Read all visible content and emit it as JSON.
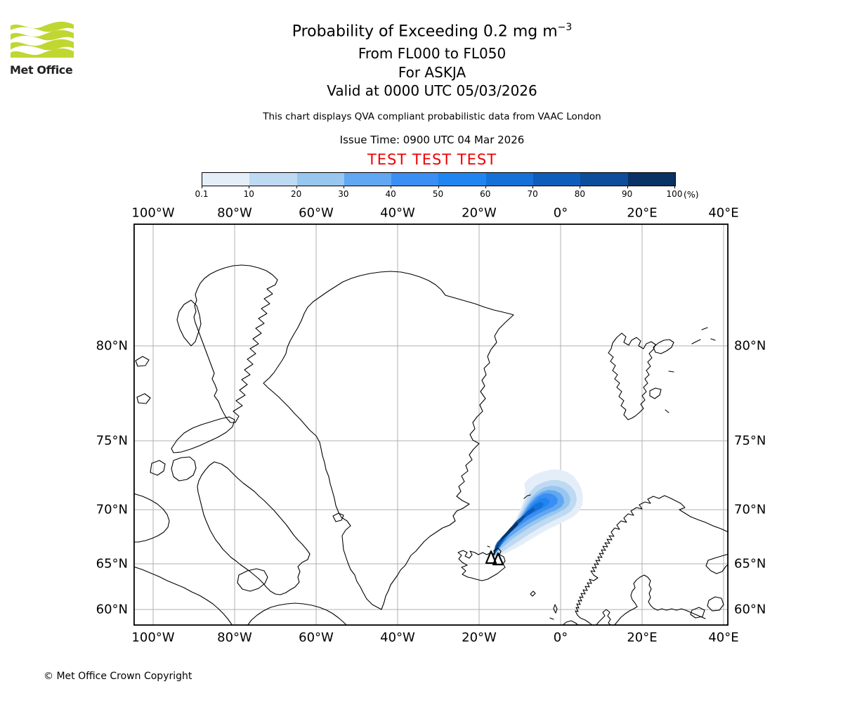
{
  "logo": {
    "text": "Met Office",
    "green": "#bfd730",
    "text_color": "#222222"
  },
  "header": {
    "title_main": "Probability of Exceeding 0.2 mg m",
    "title_sup": "−3",
    "subtitle1": "From FL000 to FL050",
    "subtitle2": "For ASKJA",
    "subtitle3": "Valid at 0000 UTC 05/03/2026",
    "description": "This chart displays QVA compliant probabilistic data from VAAC London",
    "issue_time": "Issue Time: 0900 UTC 04 Mar 2026",
    "test_banner": "TEST TEST TEST",
    "test_color": "#ee0000"
  },
  "colorbar": {
    "tick_labels": [
      "0.1",
      "10",
      "20",
      "30",
      "40",
      "50",
      "60",
      "70",
      "80",
      "90",
      "100"
    ],
    "unit": "(%)",
    "colors": [
      "#e4eef9",
      "#bed9f2",
      "#97c6ef",
      "#61a7f2",
      "#3b8ef3",
      "#2185f1",
      "#1571d7",
      "#0e5dbb",
      "#0d4d9b",
      "#0a3264"
    ]
  },
  "map": {
    "top_axis_labels": [
      "100°W",
      "80°W",
      "60°W",
      "40°W",
      "20°W",
      "0°",
      "20°E",
      "40°E"
    ],
    "bottom_axis_labels": [
      "100°W",
      "80°W",
      "60°W",
      "40°W",
      "20°W",
      "0°",
      "20°E",
      "40°E"
    ],
    "left_axis_labels": [
      "80°N",
      "75°N",
      "70°N",
      "65°N",
      "60°N"
    ],
    "right_axis_labels": [
      "80°N",
      "75°N",
      "70°N",
      "65°N",
      "60°N"
    ]
  },
  "footer": {
    "copyright": "© Met Office Crown Copyright"
  },
  "chart_data": {
    "type": "heatmap",
    "title": "Probability of Exceeding 0.2 mg m-3",
    "flight_levels": "FL000 to FL050",
    "volcano": "ASKJA",
    "valid_time": "0000 UTC 05/03/2026",
    "issue_time": "0900 UTC 04 Mar 2026",
    "source": "VAAC London",
    "quality_note": "QVA compliant probabilistic data",
    "status": "TEST TEST TEST",
    "legend_bins_percent": [
      0.1,
      10,
      20,
      30,
      40,
      50,
      60,
      70,
      80,
      90,
      100
    ],
    "legend_unit": "%",
    "projection": "mercator",
    "map_extent": {
      "lon_min": -104.8,
      "lon_max": 41.2,
      "lat_min": 58.0,
      "lat_max": 84.0
    },
    "lon_gridlines_deg": [
      -100,
      -80,
      -60,
      -40,
      -20,
      0,
      20,
      40
    ],
    "lat_gridlines_deg": [
      80,
      75,
      70,
      65,
      60
    ],
    "plume": {
      "source": {
        "name": "ASKJA",
        "lat": 65.0,
        "lon": -16.8,
        "marker": "two open triangles"
      },
      "direction": "fans out toward the northeast from Iceland",
      "approx_extent_lon": [
        -17.0,
        5.5
      ],
      "approx_extent_lat": [
        64.5,
        72.0
      ],
      "max_probability_percent": 100,
      "note": "highest probabilities form a dark-blue core along the southwest edge of the fan nearest the volcano"
    },
    "visible_landmasses": [
      "Canadian Arctic Archipelago",
      "Greenland",
      "Iceland",
      "Svalbard",
      "Scandinavia",
      "Faroe Islands",
      "Jan Mayen"
    ]
  }
}
